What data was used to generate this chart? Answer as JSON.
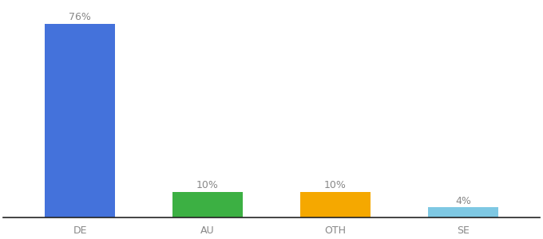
{
  "categories": [
    "DE",
    "AU",
    "OTH",
    "SE"
  ],
  "values": [
    76,
    10,
    10,
    4
  ],
  "labels": [
    "76%",
    "10%",
    "10%",
    "4%"
  ],
  "bar_colors": [
    "#4472db",
    "#3cb043",
    "#f5a800",
    "#7ec8e3"
  ],
  "ylim": [
    0,
    84
  ],
  "background_color": "#ffffff",
  "label_fontsize": 9,
  "tick_fontsize": 9,
  "bar_width": 0.55,
  "label_color": "#888888",
  "tick_color": "#888888",
  "bottom_spine_color": "#222222"
}
